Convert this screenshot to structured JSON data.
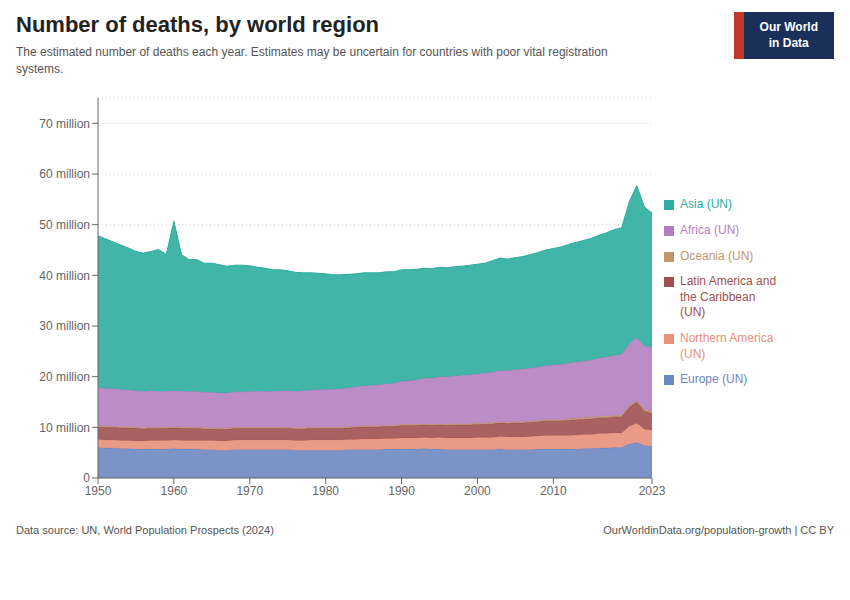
{
  "chart_data": {
    "type": "area",
    "stacked": true,
    "title": "Number of deaths, by world region",
    "subtitle": "The estimated number of deaths each year. Estimates may be uncertain for countries with poor vital registration\nsystems.",
    "annotations": [
      "Data source: UN, World Population Prospects (2024)",
      "OurWorldinData.org/population-growth | CC BY",
      "Our World\nin Data"
    ],
    "x": [
      1950,
      1951,
      1952,
      1953,
      1954,
      1955,
      1956,
      1957,
      1958,
      1959,
      1960,
      1961,
      1962,
      1963,
      1964,
      1965,
      1966,
      1967,
      1968,
      1969,
      1970,
      1971,
      1972,
      1973,
      1974,
      1975,
      1976,
      1977,
      1978,
      1979,
      1980,
      1981,
      1982,
      1983,
      1984,
      1985,
      1986,
      1987,
      1988,
      1989,
      1990,
      1991,
      1992,
      1993,
      1994,
      1995,
      1996,
      1997,
      1998,
      1999,
      2000,
      2001,
      2002,
      2003,
      2004,
      2005,
      2006,
      2007,
      2008,
      2009,
      2010,
      2011,
      2012,
      2013,
      2014,
      2015,
      2016,
      2017,
      2018,
      2019,
      2020,
      2021,
      2022,
      2023
    ],
    "xlim": [
      1950,
      2023
    ],
    "xticks": [
      1950,
      1960,
      1970,
      1980,
      1990,
      2000,
      2010,
      2023
    ],
    "ylim": [
      0,
      75
    ],
    "yticks": [
      0,
      {
        "value": 10,
        "label": "10 million"
      },
      {
        "value": 20,
        "label": "20 million"
      },
      {
        "value": 30,
        "label": "30 million"
      },
      {
        "value": 40,
        "label": "40 million"
      },
      {
        "value": 50,
        "label": "50 million"
      },
      {
        "value": 60,
        "label": "60 million"
      },
      {
        "value": 70,
        "label": "70 million"
      }
    ],
    "grid": true,
    "legend": "right",
    "series": [
      {
        "name": "Europe (UN)",
        "color": "#6d87c1",
        "values": [
          6.0,
          5.9,
          5.9,
          5.8,
          5.8,
          5.7,
          5.7,
          5.7,
          5.7,
          5.7,
          5.8,
          5.7,
          5.7,
          5.7,
          5.6,
          5.6,
          5.5,
          5.5,
          5.6,
          5.6,
          5.6,
          5.6,
          5.6,
          5.6,
          5.6,
          5.6,
          5.5,
          5.5,
          5.5,
          5.5,
          5.5,
          5.5,
          5.5,
          5.6,
          5.6,
          5.6,
          5.6,
          5.6,
          5.7,
          5.7,
          5.7,
          5.7,
          5.7,
          5.8,
          5.7,
          5.7,
          5.6,
          5.6,
          5.6,
          5.6,
          5.6,
          5.6,
          5.6,
          5.7,
          5.6,
          5.6,
          5.6,
          5.6,
          5.7,
          5.7,
          5.7,
          5.7,
          5.7,
          5.7,
          5.8,
          5.8,
          5.9,
          5.9,
          6.0,
          6.0,
          6.7,
          7.0,
          6.4,
          6.3
        ]
      },
      {
        "name": "Northern America\n(UN)",
        "color": "#e8907a",
        "values": [
          1.6,
          1.6,
          1.6,
          1.6,
          1.6,
          1.6,
          1.6,
          1.7,
          1.7,
          1.7,
          1.7,
          1.7,
          1.7,
          1.7,
          1.8,
          1.8,
          1.8,
          1.8,
          1.9,
          1.9,
          1.9,
          1.9,
          1.9,
          1.9,
          1.9,
          1.9,
          1.9,
          1.9,
          2.0,
          2.0,
          2.0,
          2.0,
          2.0,
          2.0,
          2.0,
          2.1,
          2.1,
          2.1,
          2.1,
          2.1,
          2.2,
          2.2,
          2.2,
          2.2,
          2.2,
          2.3,
          2.3,
          2.3,
          2.3,
          2.3,
          2.4,
          2.4,
          2.4,
          2.5,
          2.5,
          2.5,
          2.5,
          2.6,
          2.6,
          2.7,
          2.7,
          2.7,
          2.7,
          2.8,
          2.8,
          2.8,
          2.9,
          2.9,
          2.9,
          2.9,
          3.5,
          3.8,
          3.2,
          3.1
        ]
      },
      {
        "name": "Latin America and\nthe Caribbean\n(UN)",
        "color": "#a05050",
        "values": [
          2.5,
          2.5,
          2.5,
          2.5,
          2.5,
          2.5,
          2.4,
          2.4,
          2.4,
          2.4,
          2.4,
          2.4,
          2.4,
          2.4,
          2.3,
          2.3,
          2.3,
          2.3,
          2.3,
          2.3,
          2.3,
          2.3,
          2.3,
          2.3,
          2.3,
          2.3,
          2.3,
          2.3,
          2.3,
          2.3,
          2.3,
          2.3,
          2.3,
          2.3,
          2.4,
          2.4,
          2.4,
          2.4,
          2.4,
          2.4,
          2.5,
          2.5,
          2.5,
          2.5,
          2.5,
          2.5,
          2.5,
          2.6,
          2.6,
          2.6,
          2.6,
          2.6,
          2.7,
          2.7,
          2.7,
          2.8,
          2.8,
          2.8,
          2.8,
          2.9,
          2.9,
          2.9,
          3.0,
          3.0,
          3.0,
          3.1,
          3.1,
          3.1,
          3.2,
          3.2,
          3.8,
          4.2,
          3.6,
          3.4
        ]
      },
      {
        "name": "Oceania (UN)",
        "color": "#c0956a",
        "values": [
          0.2,
          0.2,
          0.2,
          0.2,
          0.2,
          0.2,
          0.2,
          0.2,
          0.2,
          0.2,
          0.2,
          0.2,
          0.2,
          0.2,
          0.2,
          0.2,
          0.2,
          0.2,
          0.2,
          0.2,
          0.2,
          0.2,
          0.2,
          0.2,
          0.2,
          0.2,
          0.2,
          0.2,
          0.2,
          0.2,
          0.2,
          0.2,
          0.2,
          0.2,
          0.2,
          0.2,
          0.2,
          0.2,
          0.2,
          0.2,
          0.2,
          0.2,
          0.2,
          0.2,
          0.2,
          0.2,
          0.2,
          0.2,
          0.2,
          0.2,
          0.2,
          0.2,
          0.2,
          0.2,
          0.2,
          0.2,
          0.2,
          0.2,
          0.2,
          0.2,
          0.2,
          0.2,
          0.3,
          0.3,
          0.3,
          0.3,
          0.3,
          0.3,
          0.3,
          0.3,
          0.3,
          0.3,
          0.3,
          0.3
        ]
      },
      {
        "name": "Africa (UN)",
        "color": "#b47fc0",
        "values": [
          7.5,
          7.5,
          7.4,
          7.4,
          7.3,
          7.2,
          7.2,
          7.2,
          7.1,
          7.1,
          7.1,
          7.1,
          7.1,
          7.1,
          7.0,
          7.0,
          7.0,
          7.0,
          7.0,
          7.0,
          7.1,
          7.1,
          7.1,
          7.1,
          7.2,
          7.2,
          7.2,
          7.3,
          7.3,
          7.4,
          7.5,
          7.5,
          7.6,
          7.7,
          7.8,
          7.9,
          8.0,
          8.1,
          8.2,
          8.3,
          8.5,
          8.6,
          8.8,
          9.0,
          9.1,
          9.3,
          9.4,
          9.5,
          9.6,
          9.7,
          9.8,
          9.9,
          10.0,
          10.1,
          10.2,
          10.3,
          10.4,
          10.5,
          10.6,
          10.7,
          10.8,
          10.9,
          11.0,
          11.1,
          11.2,
          11.3,
          11.5,
          11.7,
          11.8,
          12.0,
          12.2,
          12.4,
          12.5,
          12.7
        ]
      },
      {
        "name": "Asia (UN)",
        "color": "#2dada0",
        "values": [
          30.0,
          29.5,
          29.0,
          28.5,
          28.0,
          27.5,
          27.3,
          27.5,
          28.0,
          27.0,
          33.5,
          27.0,
          26.0,
          26.0,
          25.5,
          25.5,
          25.3,
          25.0,
          25.0,
          25.0,
          24.8,
          24.5,
          24.3,
          24.0,
          23.9,
          23.7,
          23.5,
          23.3,
          23.2,
          23.0,
          22.8,
          22.6,
          22.5,
          22.4,
          22.3,
          22.3,
          22.2,
          22.1,
          22.1,
          22.0,
          22.0,
          21.9,
          21.8,
          21.7,
          21.6,
          21.6,
          21.5,
          21.5,
          21.5,
          21.6,
          21.6,
          21.7,
          22.0,
          22.2,
          22.0,
          22.1,
          22.2,
          22.4,
          22.6,
          22.8,
          23.0,
          23.2,
          23.4,
          23.6,
          23.8,
          24.0,
          24.2,
          24.5,
          24.8,
          25.0,
          28.0,
          30.0,
          27.5,
          26.5
        ]
      }
    ]
  }
}
